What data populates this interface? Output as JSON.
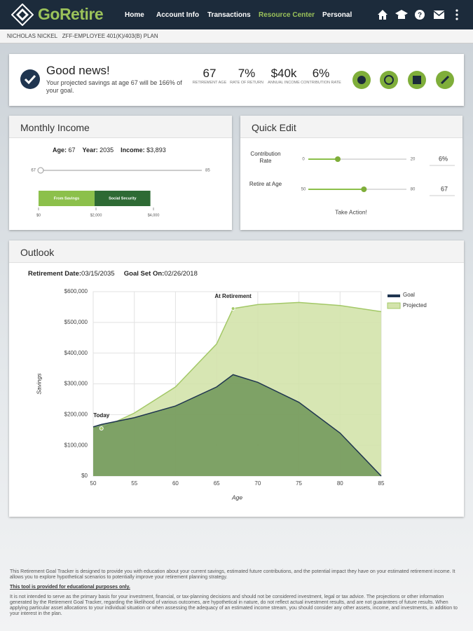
{
  "header": {
    "logo": "GoRetire",
    "nav": [
      "Home",
      "Account Info",
      "Transactions",
      "Resource Center",
      "Personal"
    ],
    "active_nav": 3
  },
  "subheader": {
    "name": "NICHOLAS NICKEL",
    "plan": "ZFF-EMPLOYEE 401(K)/403(B) PLAN"
  },
  "summary": {
    "title": "Good news!",
    "message": "Your projected savings at age 67 will be 166% of your goal.",
    "stats": [
      {
        "value": "67",
        "label": "RETIREMENT AGE"
      },
      {
        "value": "7%",
        "label": "RATE OF RETURN"
      },
      {
        "value": "$40k",
        "label": "ANNUAL INCOME"
      },
      {
        "value": "6%",
        "label": "CONTRIBUTION RATE"
      }
    ]
  },
  "monthly_income": {
    "title": "Monthly Income",
    "fields": [
      {
        "label": "Age:",
        "value": "67"
      },
      {
        "label": "Year:",
        "value": "2035"
      },
      {
        "label": "Income:",
        "value": "$3,893"
      }
    ],
    "slider": {
      "min": 67,
      "max": 85,
      "value": 67
    },
    "bar": {
      "xlim": [
        0,
        4000
      ],
      "xticks": [
        {
          "value": 0,
          "label": "$0"
        },
        {
          "value": 2000,
          "label": "$2,000"
        },
        {
          "value": 4000,
          "label": "$4,000"
        }
      ],
      "segments": [
        {
          "name": "From Savings",
          "value": 1950,
          "color": "#8cc04b"
        },
        {
          "name": "Social Security",
          "value": 1943,
          "color": "#2e6a34"
        }
      ]
    }
  },
  "quick_edit": {
    "title": "Quick Edit",
    "sliders": [
      {
        "label": "Contribution Rate",
        "min": 0,
        "max": 20,
        "value": 6,
        "value_label": "6%"
      },
      {
        "label": "Retire at Age",
        "min": 50,
        "max": 80,
        "value": 67,
        "value_label": "67"
      }
    ],
    "action": "Take Action!"
  },
  "outlook": {
    "title": "Outlook",
    "retirement_date_label": "Retirement Date:",
    "retirement_date": "03/15/2035",
    "goal_set_label": "Goal Set On:",
    "goal_set": "02/26/2018"
  },
  "chart_data": {
    "type": "area",
    "x_label": "Age",
    "y_label": "Savings",
    "x": [
      50,
      51,
      55,
      60,
      65,
      67,
      70,
      75,
      80,
      85
    ],
    "series": [
      {
        "name": "Goal",
        "color": "#1f3550",
        "fill": "#6f9558",
        "values": [
          160000,
          168000,
          190000,
          228000,
          290000,
          330000,
          305000,
          240000,
          140000,
          0
        ]
      },
      {
        "name": "Projected",
        "color": "#a3c867",
        "fill": "#d3e3ab",
        "values": [
          160000,
          155000,
          205000,
          290000,
          430000,
          545000,
          558000,
          565000,
          555000,
          535000
        ]
      }
    ],
    "annotations": [
      {
        "text": "Today",
        "x": 51
      },
      {
        "text": "At Retirement",
        "x": 67
      }
    ],
    "xlim": [
      50,
      85
    ],
    "xticks": [
      50,
      55,
      60,
      65,
      70,
      75,
      80,
      85
    ],
    "ylim": [
      0,
      600000
    ],
    "yticks": [
      {
        "value": 0,
        "label": "$0"
      },
      {
        "value": 100000,
        "label": "$100,000"
      },
      {
        "value": 200000,
        "label": "$200,000"
      },
      {
        "value": 300000,
        "label": "$300,000"
      },
      {
        "value": 400000,
        "label": "$400,000"
      },
      {
        "value": 500000,
        "label": "$500,000"
      },
      {
        "value": 600000,
        "label": "$600,000"
      }
    ],
    "grid": true,
    "legend": "top-right"
  },
  "footer": {
    "paragraphs": [
      "This Retirement Goal Tracker is designed to provide you with education about your current savings, estimated future contributions, and the potential impact they have on your estimated retirement income. It allows you to explore hypothetical scenarios to potentially improve your retirement planning strategy.",
      "This tool is provided for educational purposes only.",
      "It is not intended to serve as the primary basis for your investment, financial, or tax-planning decisions and should not be considered investment, legal or tax advice. The projections or other information generated by the Retirement Goal Tracker, regarding the likelihood of various outcomes, are hypothetical in nature, do not reflect actual investment results, and are not guarantees of future results. When applying particular asset allocations to your individual situation or when assessing the adequacy of an estimated income stream, you should consider any other assets, income, and investments, in addition to your interest in the plan."
    ]
  }
}
